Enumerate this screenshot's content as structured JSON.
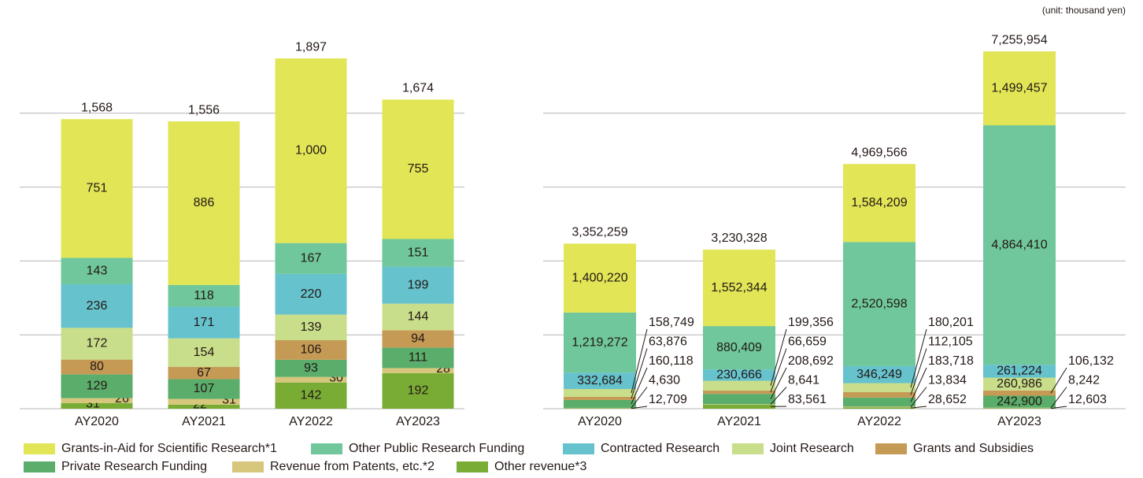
{
  "note": "(unit: thousand yen)",
  "chart_data": [
    {
      "type": "stacked_bar",
      "categories": [
        "AY2020",
        "AY2021",
        "AY2022",
        "AY2023"
      ],
      "ylim": [
        0,
        2000
      ],
      "yticks": [
        0,
        400,
        800,
        1200,
        1600
      ],
      "grid": true,
      "totals": [
        1568,
        1556,
        1897,
        1674
      ],
      "totals_labels": [
        "1,568",
        "1,556",
        "1,897",
        "1,674"
      ],
      "series": [
        {
          "name": "Grants-in-Aid for Scientific Research*1",
          "color": "#e1e556",
          "values": [
            751,
            886,
            1000,
            755
          ],
          "value_labels": [
            "751",
            "886",
            "1,000",
            "755"
          ]
        },
        {
          "name": "Other Public Research Funding",
          "color": "#6fc79b",
          "values": [
            143,
            118,
            167,
            151
          ]
        },
        {
          "name": "Contracted Research",
          "color": "#66c2cc",
          "values": [
            236,
            171,
            220,
            199
          ]
        },
        {
          "name": "Joint Research",
          "color": "#c8de8a",
          "values": [
            172,
            154,
            139,
            144
          ]
        },
        {
          "name": "Grants and Subsidies",
          "color": "#c59a55",
          "values": [
            80,
            67,
            106,
            94
          ]
        },
        {
          "name": "Private Research Funding",
          "color": "#5aad6a",
          "values": [
            129,
            107,
            93,
            111
          ]
        },
        {
          "name": "Revenue from Patents, etc.*2",
          "color": "#d7c77c",
          "values": [
            26,
            31,
            30,
            28
          ]
        },
        {
          "name": "Other revenue*3",
          "color": "#79ac35",
          "values": [
            31,
            22,
            142,
            192
          ]
        }
      ]
    },
    {
      "type": "stacked_bar",
      "categories": [
        "AY2020",
        "AY2021",
        "AY2022",
        "AY2023"
      ],
      "ylim": [
        0,
        7500000
      ],
      "yticks": [
        0,
        1500000,
        3000000,
        4500000,
        6000000
      ],
      "grid": true,
      "totals": [
        3352259,
        3230328,
        4969566,
        7255954
      ],
      "totals_labels": [
        "3,352,259",
        "3,230,328",
        "4,969,566",
        "7,255,954"
      ],
      "series": [
        {
          "values": [
            1400220,
            1552344,
            1584209,
            1499457
          ],
          "value_labels": [
            "1,400,220",
            "1,552,344",
            "1,584,209",
            "1,499,457"
          ]
        },
        {
          "values": [
            1219272,
            880409,
            2520598,
            4864410
          ],
          "value_labels": [
            "1,219,272",
            "880,409",
            "2,520,598",
            "4,864,410"
          ]
        },
        {
          "values": [
            332684,
            230666,
            346249,
            261224
          ],
          "value_labels": [
            "332,684",
            "230,666",
            "346,249",
            "261,224"
          ]
        },
        {
          "values": [
            158749,
            199356,
            180201,
            260986
          ],
          "value_labels": [
            "158,749",
            "199,356",
            "180,201",
            "260,986"
          ]
        },
        {
          "values": [
            63876,
            66659,
            112105,
            106132
          ],
          "value_labels": [
            "63,876",
            "66,659",
            "112,105",
            "106,132"
          ]
        },
        {
          "values": [
            160118,
            208692,
            183718,
            242900
          ],
          "value_labels": [
            "160,118",
            "208,692",
            "183,718",
            "242,900"
          ]
        },
        {
          "values": [
            4630,
            8641,
            13834,
            8242
          ],
          "value_labels": [
            "4,630",
            "8,641",
            "13,834",
            "8,242"
          ]
        },
        {
          "values": [
            12709,
            83561,
            28652,
            12603
          ],
          "value_labels": [
            "12,709",
            "83,561",
            "28,652",
            "12,603"
          ]
        }
      ]
    }
  ]
}
